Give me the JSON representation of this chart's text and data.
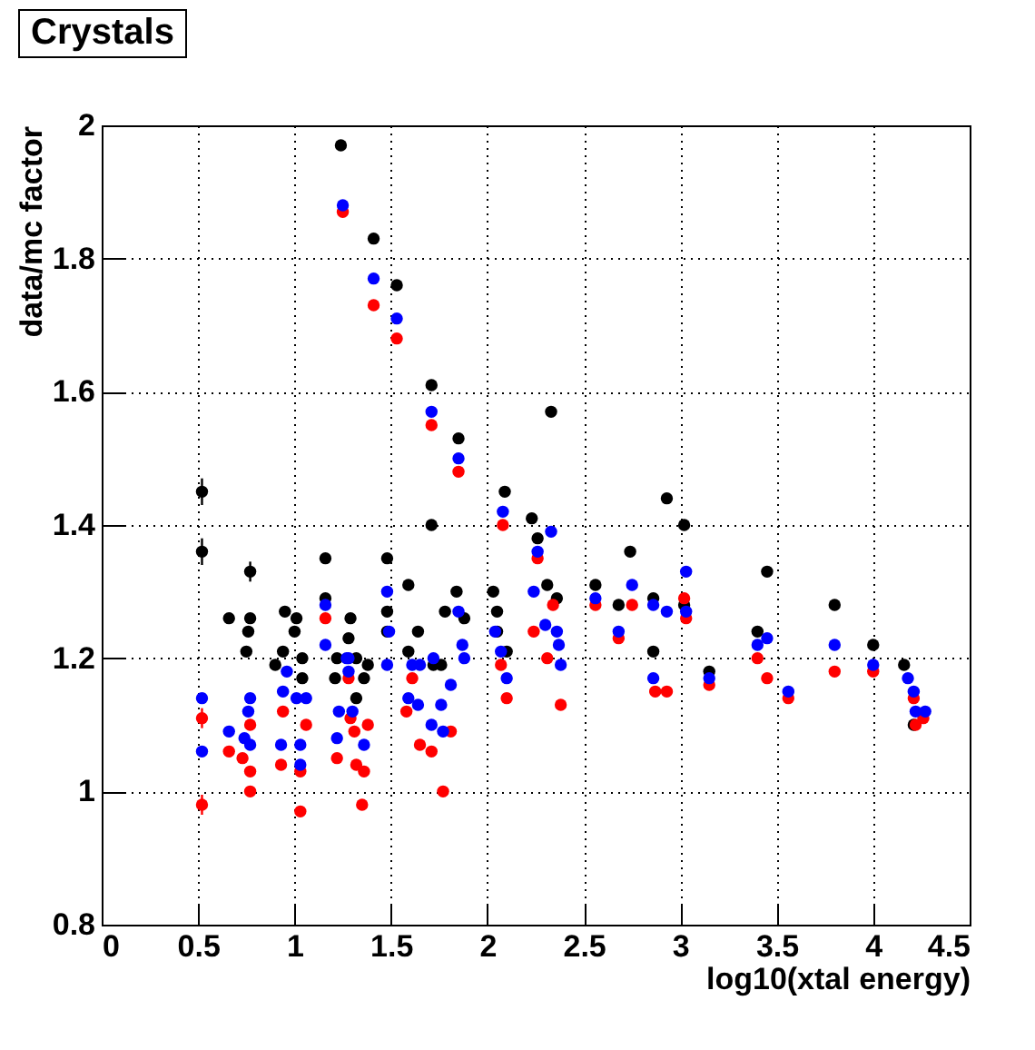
{
  "chart_data": {
    "type": "scatter",
    "title": "Crystals",
    "xlabel": "log10(xtal energy)",
    "ylabel": "data/mc factor",
    "xlim": [
      0,
      4.5
    ],
    "ylim": [
      0.8,
      2
    ],
    "xticks": [
      0,
      0.5,
      1,
      1.5,
      2,
      2.5,
      3,
      3.5,
      4,
      4.5
    ],
    "yticks": [
      0.8,
      1,
      1.2,
      1.4,
      1.6,
      1.8,
      2
    ],
    "grid": true,
    "legend": false,
    "marker": "circle",
    "series": [
      {
        "color": "#000000",
        "x": [
          0.52,
          0.52,
          0.66,
          0.77,
          0.77,
          0.76,
          0.75,
          0.95,
          1.01,
          1.0,
          0.94,
          0.9,
          1.04,
          1.04,
          1.16,
          1.16,
          1.29,
          1.28,
          1.22,
          1.32,
          1.38,
          1.21,
          1.36,
          1.32,
          1.48,
          1.48,
          1.48,
          1.24,
          1.41,
          1.53,
          1.71,
          1.85,
          2.33,
          2.09,
          1.71,
          1.59,
          1.84,
          1.78,
          1.64,
          1.59,
          1.72,
          1.76,
          1.88,
          2.03,
          2.05,
          2.05,
          2.1,
          2.23,
          2.26,
          2.31,
          2.36,
          2.93,
          3.02,
          2.74,
          3.45,
          2.56,
          2.68,
          2.86,
          2.86,
          3.02,
          3.15,
          3.4,
          3.8,
          4.0,
          4.16,
          4.21
        ],
        "values": [
          1.45,
          1.36,
          1.26,
          1.33,
          1.26,
          1.24,
          1.21,
          1.27,
          1.26,
          1.24,
          1.21,
          1.19,
          1.2,
          1.17,
          1.35,
          1.29,
          1.26,
          1.23,
          1.2,
          1.2,
          1.19,
          1.17,
          1.17,
          1.14,
          1.35,
          1.27,
          1.24,
          1.97,
          1.83,
          1.76,
          1.61,
          1.53,
          1.57,
          1.45,
          1.4,
          1.31,
          1.3,
          1.27,
          1.24,
          1.21,
          1.19,
          1.19,
          1.26,
          1.3,
          1.27,
          1.24,
          1.21,
          1.41,
          1.38,
          1.31,
          1.29,
          1.44,
          1.4,
          1.36,
          1.33,
          1.31,
          1.28,
          1.29,
          1.21,
          1.28,
          1.18,
          1.24,
          1.28,
          1.22,
          1.19,
          1.1
        ],
        "errors": [
          0.02,
          0.02,
          null,
          0.015,
          null,
          null,
          null,
          null,
          null,
          null,
          null,
          null,
          null,
          null,
          null,
          null,
          null,
          null,
          null,
          null,
          null,
          null,
          null,
          null,
          null,
          null,
          null,
          null,
          null,
          null,
          null,
          null,
          null,
          null,
          null,
          null,
          null,
          null,
          null,
          null,
          null,
          null,
          null,
          null,
          null,
          null,
          null,
          null,
          null,
          null,
          null,
          null,
          null,
          null,
          null,
          null,
          null,
          null,
          null,
          null,
          null,
          null,
          null,
          null,
          null,
          null
        ]
      },
      {
        "color": "#ff0000",
        "x": [
          1.25,
          1.41,
          1.53,
          1.71,
          1.85,
          2.08,
          2.26,
          2.34,
          2.24,
          1.16,
          2.07,
          2.1,
          2.38,
          2.31,
          1.61,
          1.58,
          1.65,
          1.71,
          1.81,
          1.77,
          1.36,
          1.32,
          1.22,
          1.35,
          1.29,
          1.28,
          0.52,
          0.52,
          0.66,
          0.77,
          0.77,
          0.77,
          0.73,
          0.93,
          0.94,
          1.06,
          1.03,
          1.03,
          1.38,
          1.31,
          2.56,
          2.75,
          2.68,
          2.87,
          2.93,
          3.03,
          3.02,
          3.15,
          3.4,
          3.45,
          3.56,
          3.8,
          4.0,
          4.21,
          4.22,
          4.26
        ],
        "values": [
          1.87,
          1.73,
          1.68,
          1.55,
          1.48,
          1.4,
          1.35,
          1.28,
          1.24,
          1.26,
          1.19,
          1.14,
          1.13,
          1.2,
          1.17,
          1.12,
          1.07,
          1.06,
          1.09,
          1.0,
          1.03,
          1.04,
          1.05,
          0.98,
          1.11,
          1.17,
          1.11,
          0.98,
          1.06,
          1.1,
          1.03,
          1.0,
          1.05,
          1.04,
          1.12,
          1.1,
          1.03,
          0.97,
          1.1,
          1.09,
          1.28,
          1.28,
          1.23,
          1.15,
          1.15,
          1.26,
          1.29,
          1.16,
          1.2,
          1.17,
          1.14,
          1.18,
          1.18,
          1.14,
          1.1,
          1.11
        ],
        "errors": [
          null,
          null,
          null,
          null,
          null,
          null,
          null,
          null,
          null,
          null,
          null,
          null,
          null,
          null,
          null,
          null,
          null,
          null,
          null,
          null,
          null,
          null,
          null,
          null,
          null,
          null,
          0.015,
          0.015,
          null,
          null,
          null,
          null,
          null,
          null,
          null,
          null,
          null,
          null,
          null,
          null,
          null,
          null,
          null,
          null,
          null,
          null,
          null,
          null,
          null,
          null,
          null,
          null,
          null,
          null,
          null,
          null
        ]
      },
      {
        "color": "#0000ff",
        "x": [
          1.25,
          1.41,
          1.53,
          1.71,
          1.85,
          2.08,
          2.26,
          2.33,
          2.24,
          1.16,
          1.16,
          1.48,
          1.49,
          1.48,
          1.28,
          1.28,
          1.61,
          1.72,
          1.65,
          1.85,
          1.87,
          1.88,
          1.81,
          1.76,
          1.59,
          1.64,
          1.71,
          1.77,
          2.04,
          2.07,
          2.1,
          2.3,
          2.36,
          2.37,
          2.38,
          1.23,
          1.3,
          1.36,
          1.22,
          0.52,
          0.52,
          0.66,
          0.77,
          0.76,
          0.77,
          0.74,
          0.93,
          0.96,
          0.94,
          1.01,
          1.06,
          1.03,
          1.03,
          1.27,
          2.75,
          2.56,
          2.86,
          2.93,
          3.03,
          3.03,
          2.68,
          2.86,
          3.15,
          3.4,
          3.45,
          3.56,
          3.8,
          4.0,
          4.18,
          4.21,
          4.22,
          4.27
        ],
        "values": [
          1.88,
          1.77,
          1.71,
          1.57,
          1.5,
          1.42,
          1.36,
          1.39,
          1.3,
          1.28,
          1.22,
          1.3,
          1.24,
          1.19,
          1.2,
          1.18,
          1.19,
          1.2,
          1.19,
          1.27,
          1.22,
          1.2,
          1.16,
          1.13,
          1.14,
          1.13,
          1.1,
          1.09,
          1.24,
          1.21,
          1.17,
          1.25,
          1.24,
          1.22,
          1.19,
          1.12,
          1.12,
          1.07,
          1.08,
          1.14,
          1.06,
          1.09,
          1.14,
          1.12,
          1.07,
          1.08,
          1.07,
          1.18,
          1.15,
          1.14,
          1.14,
          1.07,
          1.04,
          1.2,
          1.31,
          1.29,
          1.28,
          1.27,
          1.33,
          1.27,
          1.24,
          1.17,
          1.17,
          1.22,
          1.23,
          1.15,
          1.22,
          1.19,
          1.17,
          1.15,
          1.12,
          1.12
        ]
      }
    ]
  }
}
